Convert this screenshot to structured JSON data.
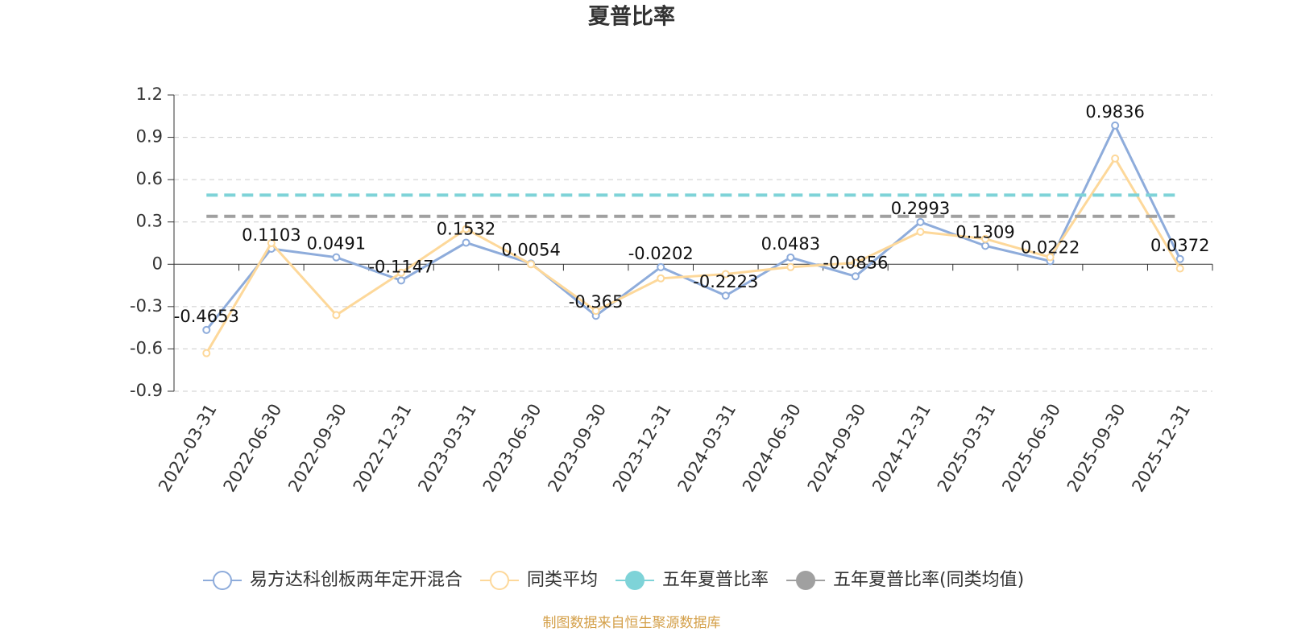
{
  "chart_data": {
    "type": "line",
    "title": "夏普比率",
    "categories": [
      "2022-03-31",
      "2022-06-30",
      "2022-09-30",
      "2022-12-31",
      "2023-03-31",
      "2023-06-30",
      "2023-09-30",
      "2023-12-31",
      "2024-03-31",
      "2024-06-30",
      "2024-09-30",
      "2024-12-31",
      "2025-03-31",
      "2025-06-30",
      "2025-09-30",
      "2025-12-31"
    ],
    "series": [
      {
        "name": "易方达科创板两年定开混合",
        "color": "#8eacdb",
        "line_style": "solid",
        "markers": true,
        "data_labels": true,
        "values": [
          -0.4653,
          0.1103,
          0.0491,
          -0.1147,
          0.1532,
          0.0054,
          -0.365,
          -0.0202,
          -0.2223,
          0.0483,
          -0.0856,
          0.2993,
          0.1309,
          0.0222,
          0.9836,
          0.0372
        ]
      },
      {
        "name": "同类平均",
        "color": "#fdd89a",
        "line_style": "solid",
        "markers": true,
        "data_labels": false,
        "values": [
          -0.63,
          0.15,
          -0.36,
          -0.06,
          0.25,
          0.0,
          -0.33,
          -0.1,
          -0.07,
          -0.02,
          0.01,
          0.23,
          0.18,
          0.05,
          0.75,
          -0.03
        ]
      },
      {
        "name": "五年夏普比率",
        "color": "#7ed3d8",
        "line_style": "dashed",
        "markers": false,
        "data_labels": false,
        "values": [
          0.49,
          0.49,
          0.49,
          0.49,
          0.49,
          0.49,
          0.49,
          0.49,
          0.49,
          0.49,
          0.49,
          0.49,
          0.49,
          0.49,
          0.49,
          0.49
        ]
      },
      {
        "name": "五年夏普比率(同类均值)",
        "color": "#a0a0a0",
        "line_style": "dashed",
        "markers": false,
        "data_labels": false,
        "values": [
          0.34,
          0.34,
          0.34,
          0.34,
          0.34,
          0.34,
          0.34,
          0.34,
          0.34,
          0.34,
          0.34,
          0.34,
          0.34,
          0.34,
          0.34,
          0.34
        ]
      }
    ],
    "ylim": [
      -0.9,
      1.2
    ],
    "yticks": [
      1.2,
      0.9,
      0.6,
      0.3,
      0,
      -0.3,
      -0.6,
      -0.9
    ],
    "grid": true,
    "legend": "bottom",
    "source": "制图数据来自恒生聚源数据库"
  }
}
